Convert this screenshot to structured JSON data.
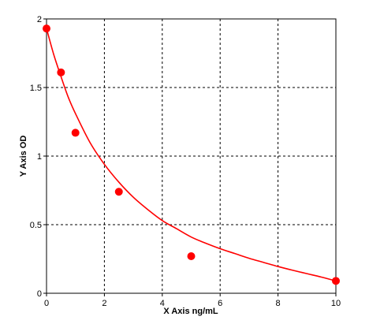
{
  "chart_data": {
    "type": "scatter",
    "title": "",
    "xlabel": "X Axis ng/mL",
    "ylabel": "Y Axis OD",
    "xlim": [
      0,
      10
    ],
    "ylim": [
      0,
      2
    ],
    "xticks": [
      0,
      2,
      4,
      6,
      8,
      10
    ],
    "yticks": [
      0,
      0.5,
      1,
      1.5,
      2
    ],
    "xtick_labels": [
      "0",
      "2",
      "4",
      "6",
      "8",
      "10"
    ],
    "ytick_labels": [
      "0",
      "0.5",
      "1",
      "1.5",
      "2"
    ],
    "grid": true,
    "grid_style": "dashed",
    "legend": "none",
    "colors": {
      "points": "#ff0000",
      "curve": "#ff0000",
      "grid": "#000000",
      "frame": "#000000"
    },
    "series": [
      {
        "kind": "points",
        "x": [
          0,
          0.5,
          1,
          2.5,
          5,
          10
        ],
        "y": [
          1.93,
          1.61,
          1.17,
          0.74,
          0.27,
          0.09
        ]
      },
      {
        "kind": "fitted-curve",
        "x": [
          0,
          0.25,
          0.5,
          0.75,
          1,
          1.5,
          2,
          2.5,
          3,
          3.5,
          4,
          4.5,
          5,
          5.5,
          6,
          6.5,
          7,
          7.5,
          8,
          8.5,
          9,
          9.5,
          10
        ],
        "y": [
          1.93,
          1.74,
          1.58,
          1.43,
          1.31,
          1.1,
          0.94,
          0.81,
          0.7,
          0.61,
          0.53,
          0.47,
          0.41,
          0.365,
          0.325,
          0.29,
          0.255,
          0.225,
          0.195,
          0.168,
          0.143,
          0.118,
          0.09
        ]
      }
    ]
  }
}
